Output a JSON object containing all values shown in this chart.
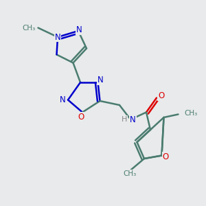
{
  "background_color": "#e8eaeb",
  "bond_color": "#4a7c6f",
  "nitrogen_color": "#0000cc",
  "oxygen_color": "#dd0000",
  "line_width": 1.8,
  "figsize": [
    3.0,
    3.0
  ],
  "dpi": 100,
  "xlim": [
    0,
    10
  ],
  "ylim": [
    0,
    10
  ]
}
